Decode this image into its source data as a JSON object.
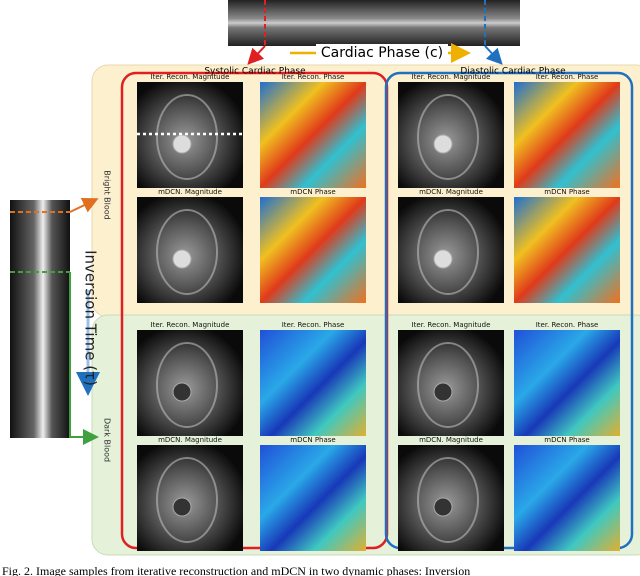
{
  "cardiac_phase_label": "Cardiac Phase (c)",
  "inversion_time_label": "Inversion Time (τ)",
  "row_labels": [
    "Bright Blood",
    "Dark Blood"
  ],
  "columns": [
    {
      "title": "Systolic Cardiac Phase",
      "panels": [
        [
          "Iter. Recon. Magnitude",
          "Iter. Recon. Phase",
          "mDCN. Magnitude",
          "mDCN Phase"
        ],
        [
          "Iter. Recon. Magnitude",
          "Iter. Recon. Phase",
          "mDCN. Magnitude",
          "mDCN Phase"
        ]
      ]
    },
    {
      "title": "Diastolic Cardiac Phase",
      "panels": [
        [
          "Iter. Recon. Magnitude",
          "Iter. Recon. Phase",
          "mDCN. Magnitude",
          "mDCN Phase"
        ],
        [
          "Iter. Recon. Magnitude",
          "Iter. Recon. Phase",
          "mDCN. Magnitude",
          "mDCN Phase"
        ]
      ]
    }
  ],
  "caption": "Fig. 2. Image samples from iterative reconstruction and mDCN in two dynamic phases: Inversion"
}
